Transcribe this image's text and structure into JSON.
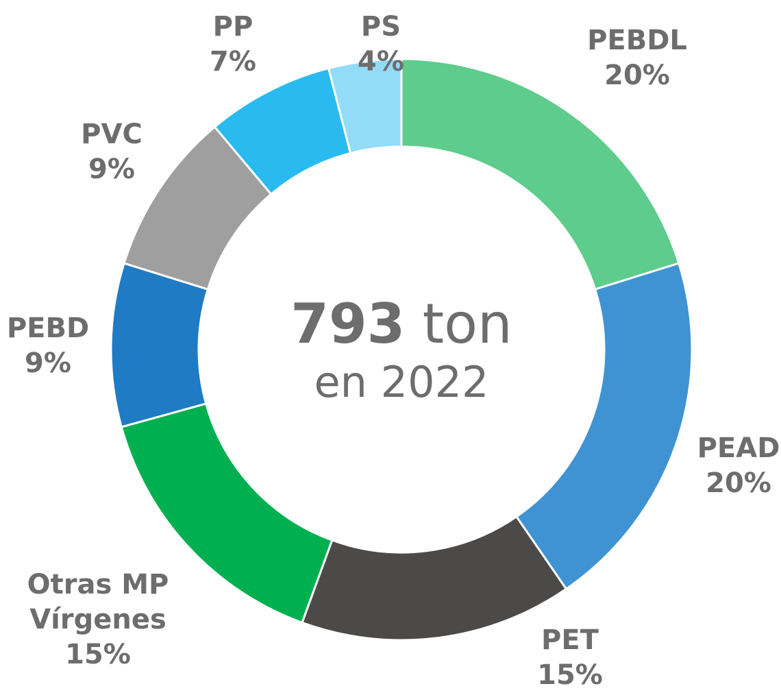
{
  "chart_data": {
    "type": "donut",
    "categories": [
      "PEBDL",
      "PEAD",
      "PET",
      "Otras MP Vírgenes",
      "PEBD",
      "PVC",
      "PP",
      "PS"
    ],
    "values": [
      20,
      20,
      15,
      15,
      9,
      9,
      7,
      4
    ],
    "value_labels": [
      "20%",
      "20%",
      "15%",
      "15%",
      "9%",
      "9%",
      "7%",
      "4%"
    ],
    "colors": [
      "#5ecc8c",
      "#3f93d2",
      "#4b4a48",
      "#00b050",
      "#1f7bc4",
      "#a09f9f",
      "#29bbf0",
      "#93dcf8"
    ],
    "annotations": {
      "center_value": "793",
      "center_unit": "ton",
      "center_subtitle": "en 2022"
    }
  }
}
